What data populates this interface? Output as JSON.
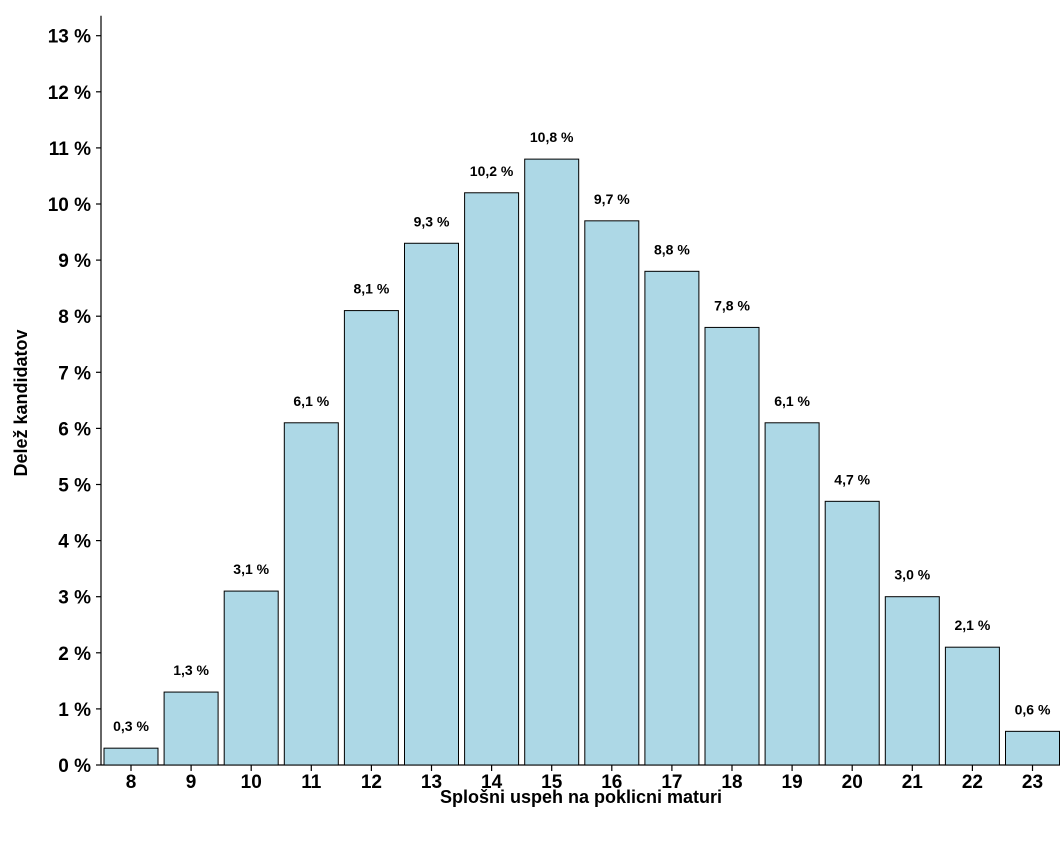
{
  "chart_data": {
    "type": "bar",
    "title": "",
    "xlabel": "Splošni uspeh na poklicni maturi",
    "ylabel": "Delež kandidatov",
    "categories": [
      "8",
      "9",
      "10",
      "11",
      "12",
      "13",
      "14",
      "15",
      "16",
      "17",
      "18",
      "19",
      "20",
      "21",
      "22",
      "23"
    ],
    "values": [
      0.3,
      1.3,
      3.1,
      6.1,
      8.1,
      9.3,
      10.2,
      10.8,
      9.7,
      8.8,
      7.8,
      6.1,
      4.7,
      3.0,
      2.1,
      0.6
    ],
    "data_labels": [
      "0,3 %",
      "1,3 %",
      "3,1 %",
      "6,1 %",
      "8,1 %",
      "9,3 %",
      "10,2 %",
      "10,8 %",
      "9,7 %",
      "8,8 %",
      "7,8 %",
      "6,1 %",
      "4,7 %",
      "3,0 %",
      "2,1 %",
      "0,6 %"
    ],
    "ylim": [
      0,
      13
    ],
    "yticks": [
      0,
      1,
      2,
      3,
      4,
      5,
      6,
      7,
      8,
      9,
      10,
      11,
      12,
      13
    ],
    "ytick_labels": [
      "0 %",
      "1 %",
      "2 %",
      "3 %",
      "4 %",
      "5 %",
      "6 %",
      "7 %",
      "8 %",
      "9 %",
      "10 %",
      "11 %",
      "12 %",
      "13 %"
    ],
    "grid": false,
    "legend": "none",
    "colors": {
      "bar_fill": "#add8e6",
      "bar_stroke": "#000000",
      "axis": "#000000"
    }
  }
}
